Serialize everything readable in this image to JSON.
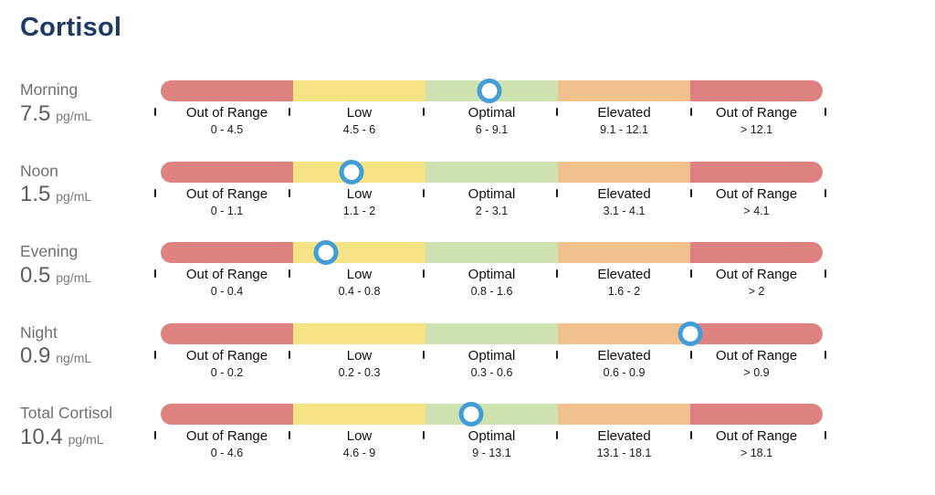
{
  "title": "Cortisol",
  "palette": {
    "red": "#dd8181",
    "yellow": "#f5e385",
    "green": "#cde2ae",
    "orange": "#f2c08c",
    "marker_ring": "#419ed9",
    "title_text": "#1d3a64",
    "label_gray": "#6d7175"
  },
  "chart_data": {
    "type": "range-bar",
    "title": "Cortisol",
    "legend_position": "none",
    "rows": [
      {
        "label": "Morning",
        "value": 7.5,
        "value_display": "7.5",
        "unit": "pg/mL",
        "zones": [
          {
            "name": "Out of Range",
            "range": "0 - 4.5",
            "lo": 0,
            "hi": 4.5,
            "tone": "red"
          },
          {
            "name": "Low",
            "range": "4.5 - 6",
            "lo": 4.5,
            "hi": 6,
            "tone": "yellow"
          },
          {
            "name": "Optimal",
            "range": "6 - 9.1",
            "lo": 6,
            "hi": 9.1,
            "tone": "green"
          },
          {
            "name": "Elevated",
            "range": "9.1 - 12.1",
            "lo": 9.1,
            "hi": 12.1,
            "tone": "orange"
          },
          {
            "name": "Out of Range",
            "range": "> 12.1",
            "lo": 12.1,
            "hi": null,
            "tone": "red"
          }
        ]
      },
      {
        "label": "Noon",
        "value": 1.5,
        "value_display": "1.5",
        "unit": "pg/mL",
        "zones": [
          {
            "name": "Out of Range",
            "range": "0 - 1.1",
            "lo": 0,
            "hi": 1.1,
            "tone": "red"
          },
          {
            "name": "Low",
            "range": "1.1 - 2",
            "lo": 1.1,
            "hi": 2,
            "tone": "yellow"
          },
          {
            "name": "Optimal",
            "range": "2 - 3.1",
            "lo": 2,
            "hi": 3.1,
            "tone": "green"
          },
          {
            "name": "Elevated",
            "range": "3.1 - 4.1",
            "lo": 3.1,
            "hi": 4.1,
            "tone": "orange"
          },
          {
            "name": "Out of Range",
            "range": "> 4.1",
            "lo": 4.1,
            "hi": null,
            "tone": "red"
          }
        ]
      },
      {
        "label": "Evening",
        "value": 0.5,
        "value_display": "0.5",
        "unit": "pg/mL",
        "zones": [
          {
            "name": "Out of Range",
            "range": "0 - 0.4",
            "lo": 0,
            "hi": 0.4,
            "tone": "red"
          },
          {
            "name": "Low",
            "range": "0.4 - 0.8",
            "lo": 0.4,
            "hi": 0.8,
            "tone": "yellow"
          },
          {
            "name": "Optimal",
            "range": "0.8 - 1.6",
            "lo": 0.8,
            "hi": 1.6,
            "tone": "green"
          },
          {
            "name": "Elevated",
            "range": "1.6 - 2",
            "lo": 1.6,
            "hi": 2,
            "tone": "orange"
          },
          {
            "name": "Out of Range",
            "range": "> 2",
            "lo": 2,
            "hi": null,
            "tone": "red"
          }
        ]
      },
      {
        "label": "Night",
        "value": 0.9,
        "value_display": "0.9",
        "unit": "ng/mL",
        "zones": [
          {
            "name": "Out of Range",
            "range": "0 - 0.2",
            "lo": 0,
            "hi": 0.2,
            "tone": "red"
          },
          {
            "name": "Low",
            "range": "0.2 - 0.3",
            "lo": 0.2,
            "hi": 0.3,
            "tone": "yellow"
          },
          {
            "name": "Optimal",
            "range": "0.3 - 0.6",
            "lo": 0.3,
            "hi": 0.6,
            "tone": "green"
          },
          {
            "name": "Elevated",
            "range": "0.6 - 0.9",
            "lo": 0.6,
            "hi": 0.9,
            "tone": "orange"
          },
          {
            "name": "Out of Range",
            "range": "> 0.9",
            "lo": 0.9,
            "hi": null,
            "tone": "red"
          }
        ]
      },
      {
        "label": "Total Cortisol",
        "value": 10.4,
        "value_display": "10.4",
        "unit": "pg/mL",
        "zones": [
          {
            "name": "Out of Range",
            "range": "0 - 4.6",
            "lo": 0,
            "hi": 4.6,
            "tone": "red"
          },
          {
            "name": "Low",
            "range": "4.6 - 9",
            "lo": 4.6,
            "hi": 9,
            "tone": "yellow"
          },
          {
            "name": "Optimal",
            "range": "9 - 13.1",
            "lo": 9,
            "hi": 13.1,
            "tone": "green"
          },
          {
            "name": "Elevated",
            "range": "13.1 - 18.1",
            "lo": 13.1,
            "hi": 18.1,
            "tone": "orange"
          },
          {
            "name": "Out of Range",
            "range": "> 18.1",
            "lo": 18.1,
            "hi": null,
            "tone": "red"
          }
        ]
      }
    ]
  }
}
